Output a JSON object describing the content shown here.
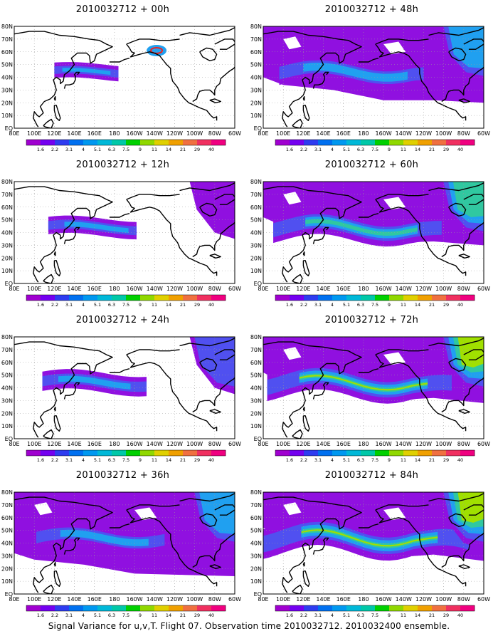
{
  "footer": "Signal Variance for u,v,T. Flight 07. Observation time 2010032712. 2010032400 ensemble.",
  "axes": {
    "lat_labels": [
      "80N",
      "70N",
      "60N",
      "50N",
      "40N",
      "30N",
      "20N",
      "10N",
      "EQ"
    ],
    "lon_labels": [
      "80E",
      "100E",
      "120E",
      "140E",
      "160E",
      "180",
      "160W",
      "140W",
      "120W",
      "100W",
      "80W",
      "60W"
    ]
  },
  "colorbar": {
    "labels": [
      "1.6",
      "2.2",
      "3.1",
      "4",
      "5.1",
      "6.3",
      "7.5",
      "9",
      "11",
      "14",
      "21",
      "29",
      "40"
    ],
    "colors": [
      "#a000d0",
      "#7400f0",
      "#2e3cf0",
      "#0070f0",
      "#0098f0",
      "#00b8d8",
      "#00c8a8",
      "#00d000",
      "#90d800",
      "#e0d000",
      "#f0a000",
      "#f07040",
      "#f03060",
      "#f00080"
    ]
  },
  "map_colors": {
    "land_outline": "#000000",
    "grid_dots": "#9a9a9a",
    "weak": "#9010e0",
    "mid": "#5050f0",
    "strong": "#20a0f0",
    "peak": "#30c8a0",
    "hot": "#a0e000",
    "red": "#f02020"
  },
  "panels": [
    {
      "title": "2010032712 + 00h",
      "col": 0,
      "row": 0,
      "level": 0
    },
    {
      "title": "2010032712 + 48h",
      "col": 1,
      "row": 0,
      "level": 4
    },
    {
      "title": "2010032712 + 12h",
      "col": 0,
      "row": 1,
      "level": 1
    },
    {
      "title": "2010032712 + 60h",
      "col": 1,
      "row": 1,
      "level": 5
    },
    {
      "title": "2010032712 + 24h",
      "col": 0,
      "row": 2,
      "level": 2
    },
    {
      "title": "2010032712 + 72h",
      "col": 1,
      "row": 2,
      "level": 6
    },
    {
      "title": "2010032712 + 36h",
      "col": 0,
      "row": 3,
      "level": 3
    },
    {
      "title": "2010032712 + 84h",
      "col": 1,
      "row": 3,
      "level": 7
    }
  ]
}
